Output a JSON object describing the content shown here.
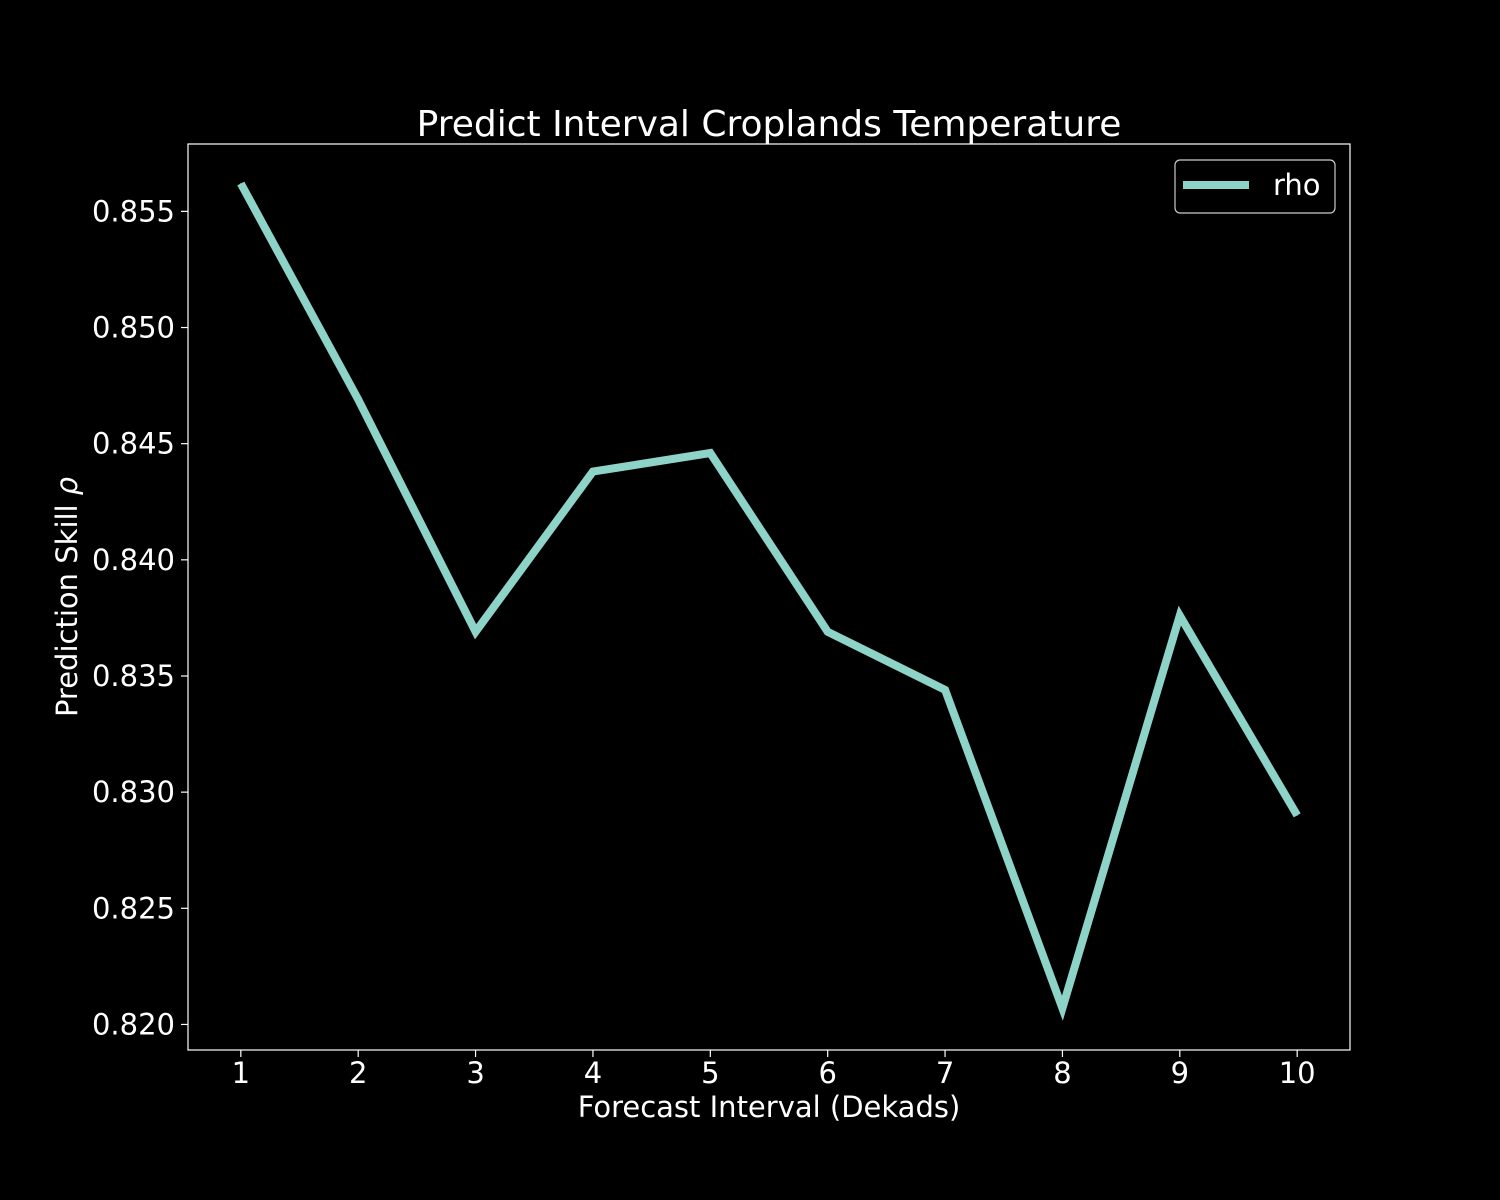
{
  "chart_data": {
    "type": "line",
    "title": "Predict Interval Croplands Temperature",
    "xlabel": "Forecast Interval (Dekads)",
    "ylabel": "Prediction Skill",
    "ylabel_symbol": "ρ",
    "x": [
      1,
      2,
      3,
      4,
      5,
      6,
      7,
      8,
      9,
      10
    ],
    "xticks": [
      "1",
      "2",
      "3",
      "4",
      "5",
      "6",
      "7",
      "8",
      "9",
      "10"
    ],
    "yticks": [
      "0.820",
      "0.825",
      "0.830",
      "0.835",
      "0.840",
      "0.845",
      "0.850",
      "0.855"
    ],
    "xlim": [
      0.55,
      10.45
    ],
    "ylim": [
      0.8189,
      0.8579
    ],
    "series": [
      {
        "name": "rho",
        "color": "#8dd3c7",
        "values": [
          0.8562,
          0.8469,
          0.8369,
          0.8438,
          0.8446,
          0.8369,
          0.8344,
          0.8207,
          0.8376,
          0.829
        ]
      }
    ],
    "legend_position": "top-right",
    "grid": false,
    "background": "#000000",
    "foreground": "#ffffff"
  }
}
